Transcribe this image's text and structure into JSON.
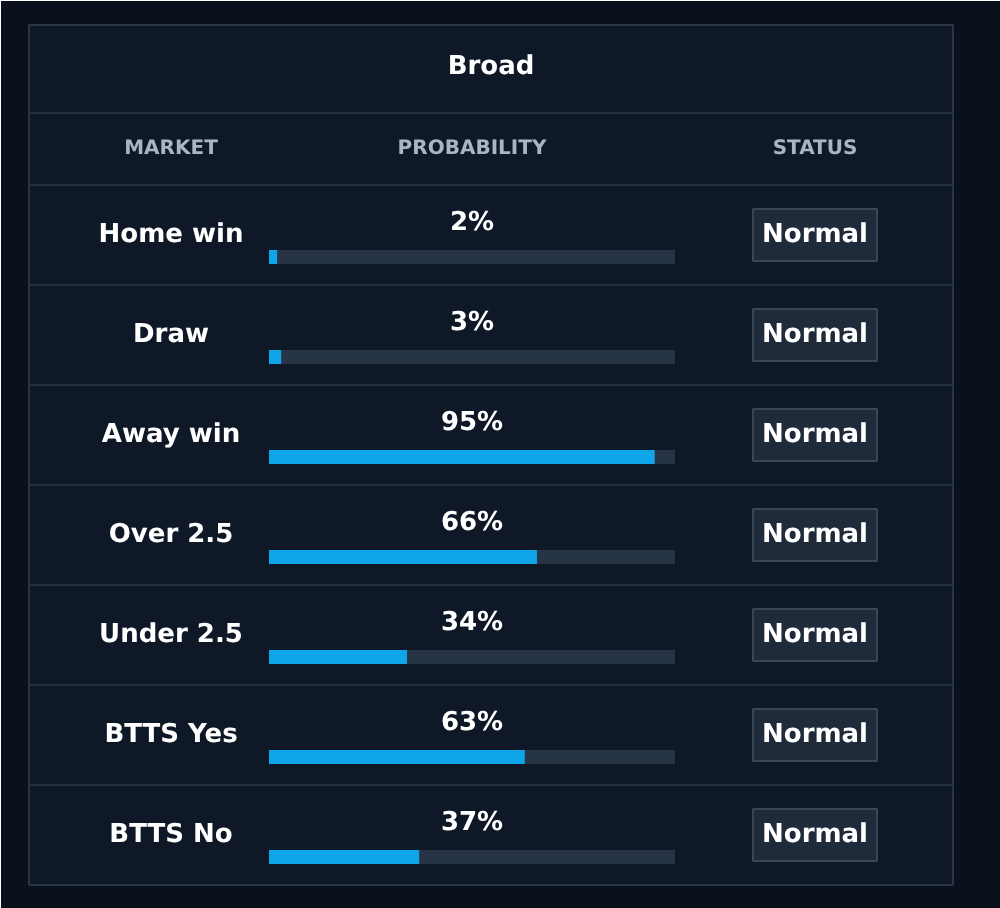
{
  "chart_data": {
    "type": "bar",
    "orientation": "horizontal",
    "title": "Broad",
    "ylabel": "MARKET",
    "xlabel": "PROBABILITY",
    "categories": [
      "Home win",
      "Draw",
      "Away win",
      "Over 2.5",
      "Under 2.5",
      "BTTS Yes",
      "BTTS No"
    ],
    "values": [
      2,
      3,
      95,
      66,
      34,
      63,
      37
    ],
    "value_labels": [
      "2%",
      "3%",
      "95%",
      "66%",
      "34%",
      "63%",
      "37%"
    ],
    "color": "#0ea5e9",
    "xlim": [
      0,
      100
    ],
    "tick_labels": "y",
    "annotations": [
      "STATUS",
      "Normal",
      "Normal",
      "Normal",
      "Normal",
      "Normal",
      "Normal",
      "Normal"
    ]
  }
}
